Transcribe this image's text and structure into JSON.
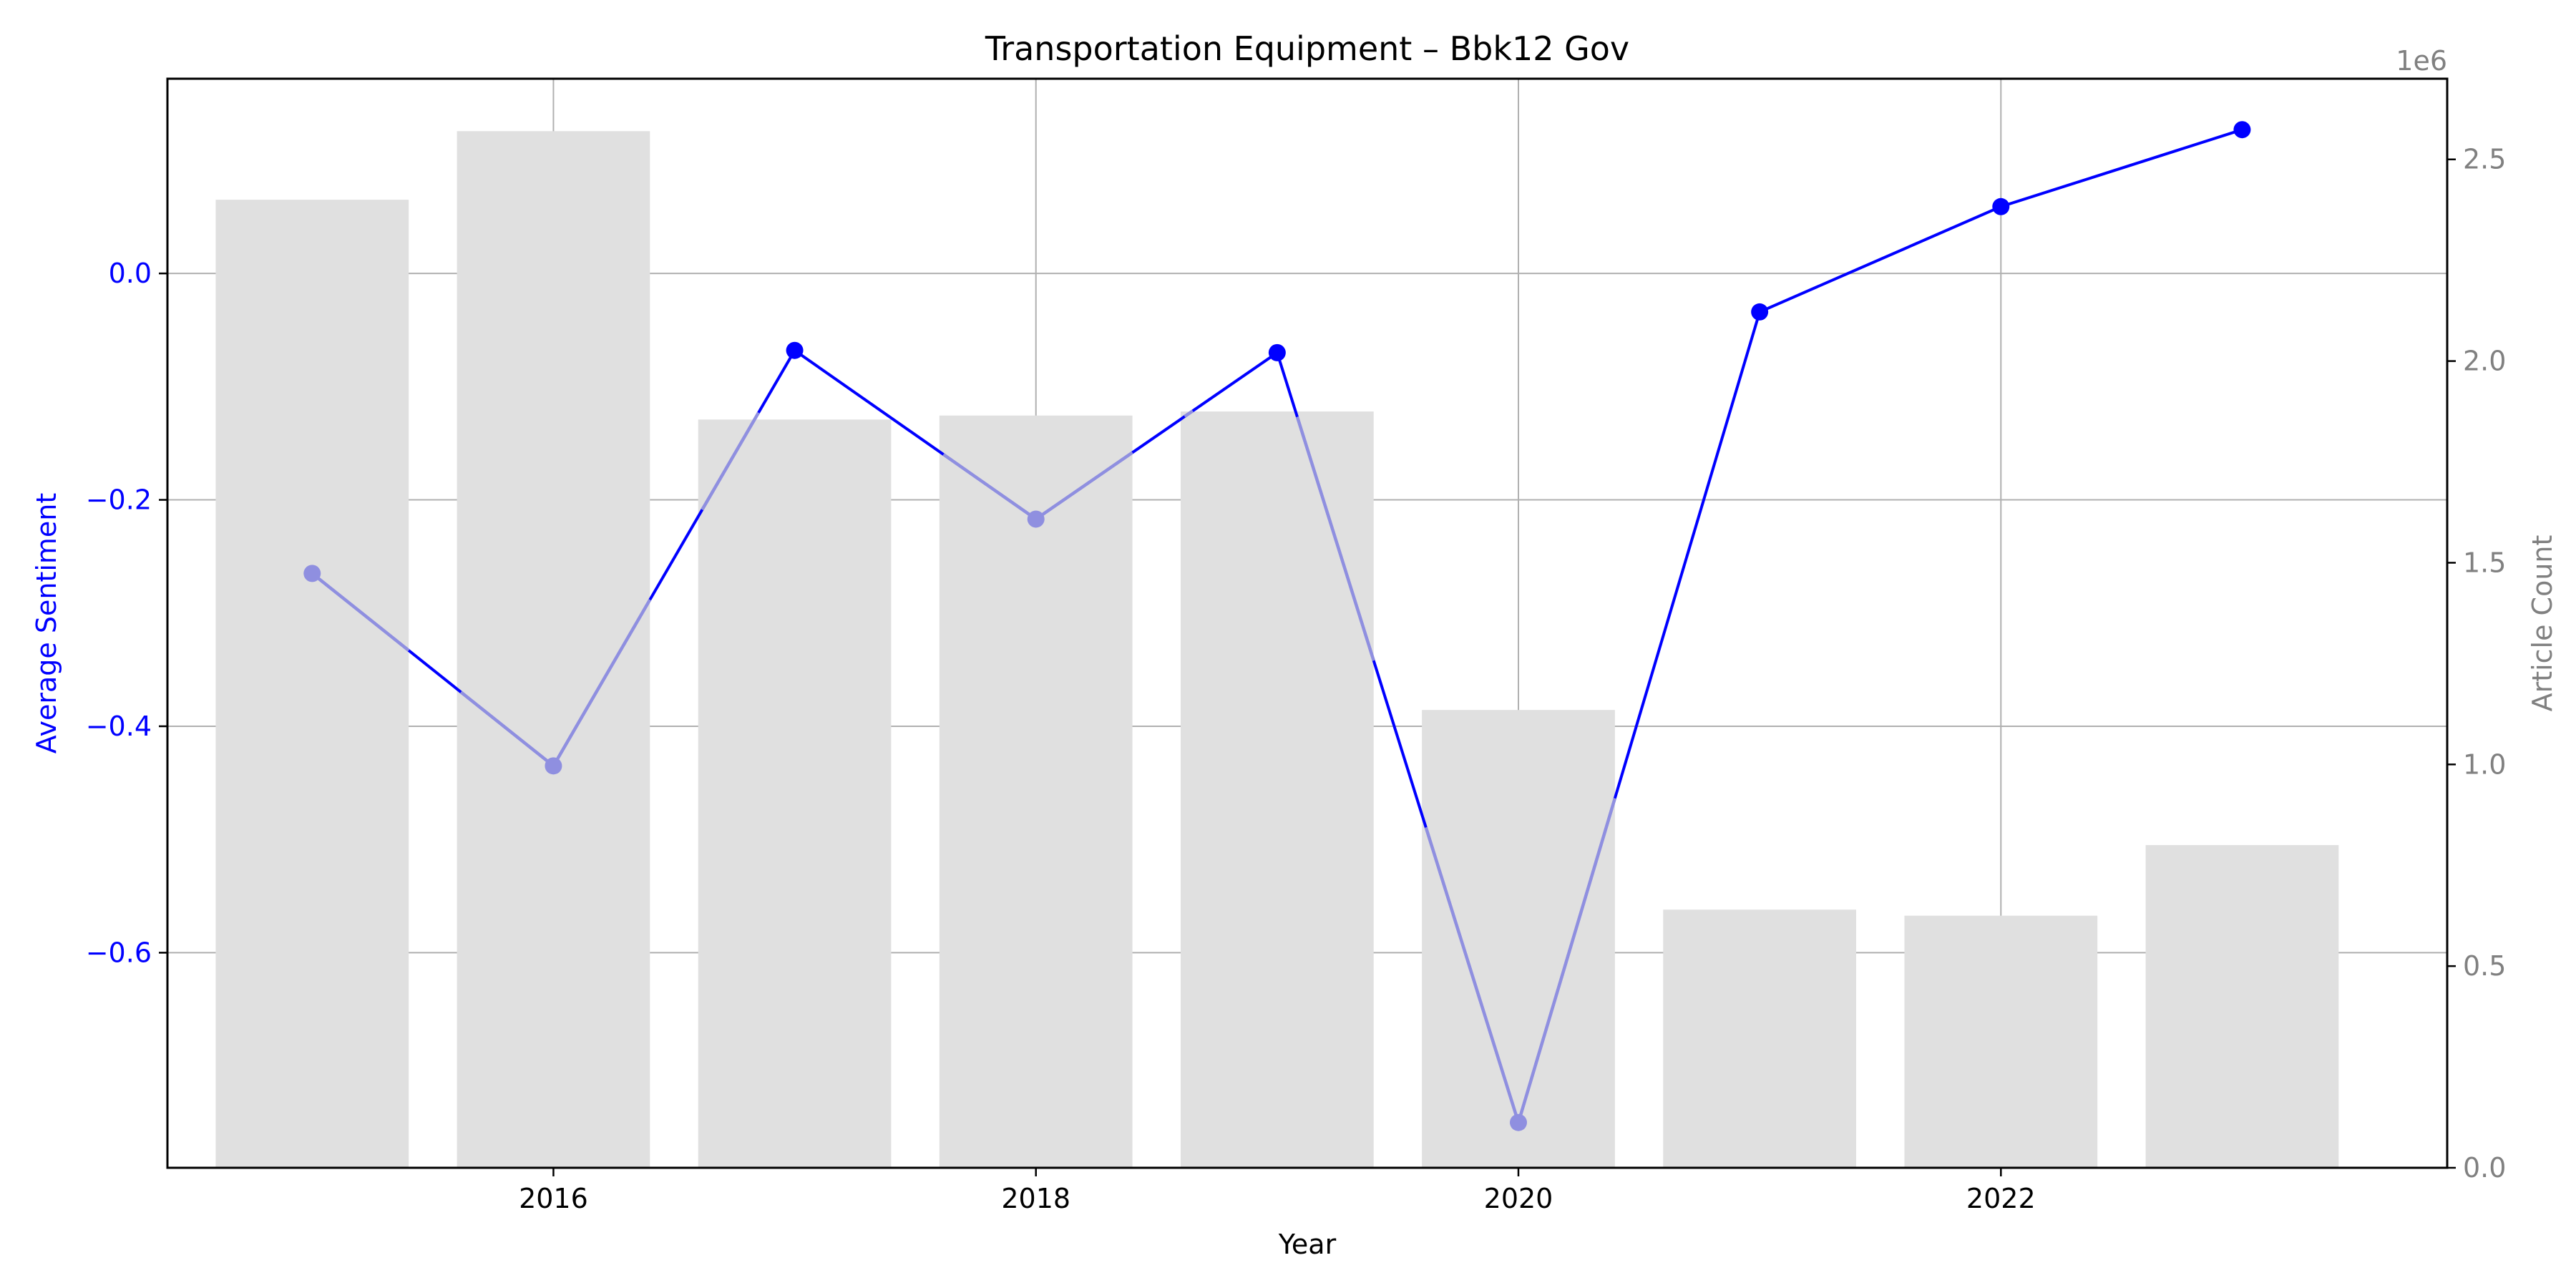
{
  "chart_data": {
    "type": "bar+line",
    "title": "Transportation Equipment – Bbk12 Gov",
    "xlabel": "Year",
    "ylabel_left": "Average Sentiment",
    "ylabel_right": "Article Count",
    "right_axis_multiplier": "1e6",
    "x": [
      2015,
      2016,
      2017,
      2018,
      2019,
      2020,
      2021,
      2022,
      2023
    ],
    "x_ticks": [
      2016,
      2018,
      2020,
      2022
    ],
    "x_tick_labels": [
      "2016",
      "2018",
      "2020",
      "2022"
    ],
    "xlim": [
      2014.4,
      2023.85
    ],
    "bars": {
      "name": "Article Count",
      "values": [
        2400000,
        2570000,
        1855000,
        1865000,
        1875000,
        1135000,
        640000,
        625000,
        800000
      ],
      "color": "#e0e0e0"
    },
    "line": {
      "name": "Average Sentiment",
      "values": [
        -0.265,
        -0.435,
        -0.068,
        -0.217,
        -0.07,
        -0.75,
        -0.034,
        0.059,
        0.127
      ],
      "color": "#0000ff",
      "obscured_color": "#8f8fe0"
    },
    "y_left": {
      "lim": [
        -0.79,
        0.172
      ],
      "ticks": [
        0.0,
        -0.2,
        -0.4,
        -0.6
      ],
      "tick_labels": [
        "0.0",
        "−0.2",
        "−0.4",
        "−0.6"
      ],
      "color": "#0000ff"
    },
    "y_right": {
      "lim": [
        0,
        2.7
      ],
      "ticks": [
        0.0,
        0.5,
        1.0,
        1.5,
        2.0,
        2.5
      ],
      "tick_labels": [
        "0.0",
        "0.5",
        "1.0",
        "1.5",
        "2.0",
        "2.5"
      ],
      "color": "#808080"
    },
    "grid": true
  }
}
